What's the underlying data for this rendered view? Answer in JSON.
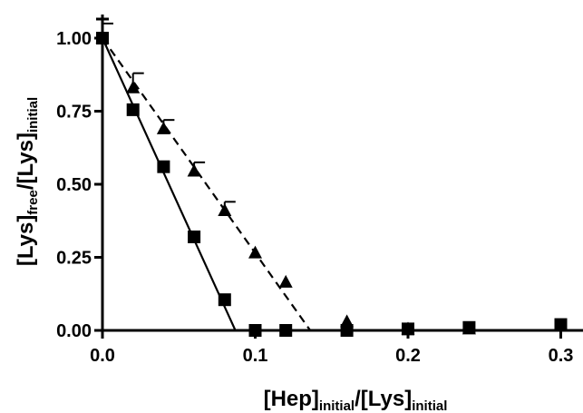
{
  "chart_data": {
    "type": "scatter",
    "xlabel": {
      "base1": "[Hep]",
      "sub1": "initial",
      "sep": "/",
      "base2": "[Lys]",
      "sub2": "initial"
    },
    "ylabel": {
      "base1": "[Lys]",
      "sub1": "free",
      "sep": "/",
      "base2": "[Lys]",
      "sub2": "initial"
    },
    "xlim": [
      0,
      0.32
    ],
    "ylim": [
      0,
      1.05
    ],
    "x_ticks": [
      0.0,
      0.1,
      0.2,
      0.3
    ],
    "x_tick_labels": [
      "0.0",
      "0.1",
      "0.2",
      "0.3"
    ],
    "y_ticks": [
      0.0,
      0.25,
      0.5,
      0.75,
      1.0
    ],
    "y_tick_labels": [
      "0.00",
      "0.25",
      "0.50",
      "0.75",
      "1.00"
    ],
    "grid": false,
    "series": [
      {
        "marker": "square",
        "color": "#000000",
        "x": [
          0.0,
          0.02,
          0.04,
          0.06,
          0.08,
          0.1,
          0.12,
          0.16,
          0.2,
          0.24,
          0.3
        ],
        "y": [
          1.0,
          0.755,
          0.56,
          0.32,
          0.105,
          0.0,
          0.0,
          0.0,
          0.005,
          0.01,
          0.02
        ],
        "fit_line": {
          "style": "solid",
          "x": [
            0.0,
            0.087
          ],
          "y": [
            1.0,
            0.0
          ]
        }
      },
      {
        "marker": "triangle",
        "color": "#000000",
        "x": [
          0.0,
          0.02,
          0.04,
          0.06,
          0.08,
          0.1,
          0.12,
          0.16,
          0.2,
          0.24
        ],
        "y": [
          1.0,
          0.83,
          0.69,
          0.545,
          0.41,
          0.265,
          0.165,
          0.03,
          0.005,
          0.005
        ],
        "error_up": [
          0.05,
          0.05,
          0.03,
          0.03,
          0.03,
          0.0,
          0.0,
          0.0,
          0.0,
          0.0
        ],
        "fit_line": {
          "style": "dashed",
          "x": [
            0.0,
            0.136
          ],
          "y": [
            1.0,
            0.0
          ]
        }
      }
    ]
  }
}
